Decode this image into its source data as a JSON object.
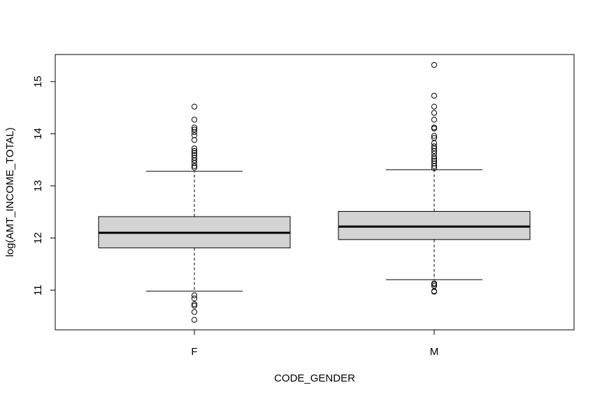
{
  "chart_data": {
    "type": "box",
    "xlabel": "CODE_GENDER",
    "ylabel": "log(AMT_INCOME_TOTAL)",
    "ylim": [
      10.25,
      15.55
    ],
    "yticks": [
      11,
      12,
      13,
      14,
      15
    ],
    "grid": false,
    "box_fill": "#d3d3d3",
    "categories": [
      "F",
      "M"
    ],
    "boxes": [
      {
        "category": "F",
        "whisker_low": 10.98,
        "q1": 11.81,
        "median": 12.1,
        "q3": 12.41,
        "whisker_high": 13.28,
        "outliers": [
          14.52,
          14.27,
          14.12,
          14.08,
          14.03,
          13.97,
          13.88,
          13.72,
          13.67,
          13.63,
          13.59,
          13.54,
          13.49,
          13.44,
          13.38,
          13.35,
          10.9,
          10.84,
          10.73,
          10.7,
          10.58,
          10.43
        ]
      },
      {
        "category": "M",
        "whisker_low": 11.2,
        "q1": 11.97,
        "median": 12.22,
        "q3": 12.51,
        "whisker_high": 13.31,
        "outliers": [
          15.32,
          14.73,
          14.52,
          14.4,
          14.27,
          14.12,
          14.1,
          13.96,
          13.92,
          13.82,
          13.76,
          13.72,
          13.67,
          13.62,
          13.56,
          13.52,
          13.48,
          13.43,
          13.38,
          13.34,
          11.13,
          11.11,
          11.08,
          10.98,
          10.97
        ]
      }
    ]
  }
}
